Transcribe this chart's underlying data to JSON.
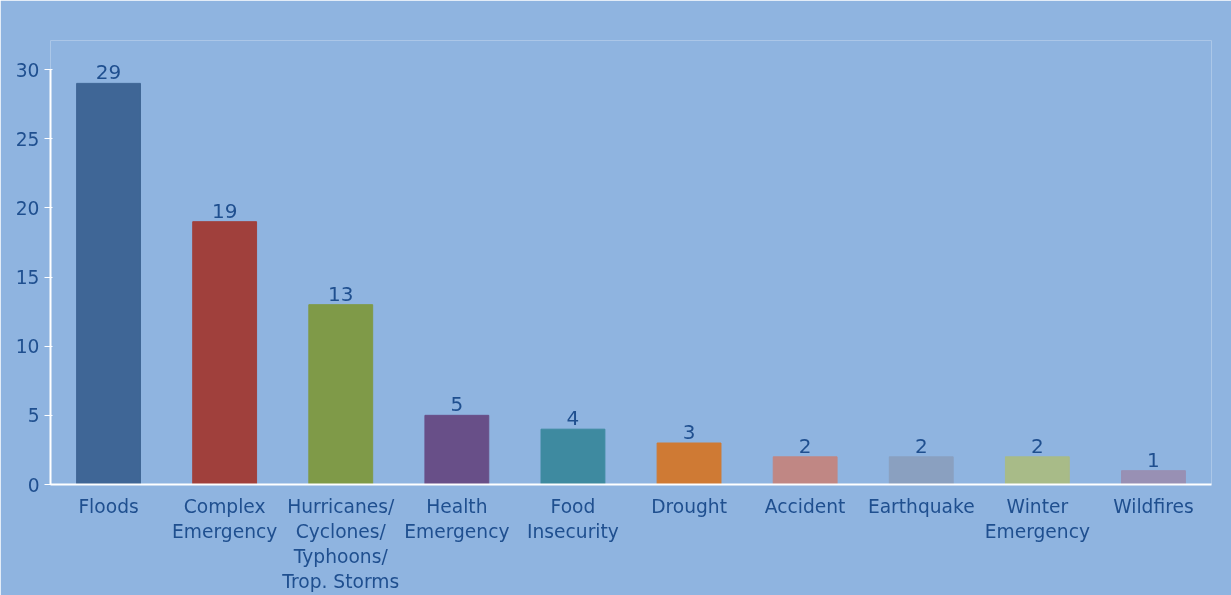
{
  "chart_data": {
    "type": "bar",
    "categories": [
      "Floods",
      "Complex Emergency",
      "Hurricanes/ Cyclones/ Typhoons/ Trop. Storms",
      "Health Emergency",
      "Food Insecurity",
      "Drought",
      "Accident",
      "Earthquake",
      "Winter Emergency",
      "Wildfires"
    ],
    "values": [
      29,
      19,
      13,
      5,
      4,
      3,
      2,
      2,
      2,
      1
    ],
    "colors": [
      "#3f6696",
      "#a0403c",
      "#7f9a48",
      "#684f88",
      "#3e8aa0",
      "#cf7a34",
      "#c08784",
      "#8aa0c0",
      "#a8bb88",
      "#9890b4"
    ],
    "ylim": [
      0,
      30
    ],
    "yticks": [
      0,
      5,
      10,
      15,
      20,
      25,
      30
    ],
    "grid": false,
    "data_labels": true
  }
}
